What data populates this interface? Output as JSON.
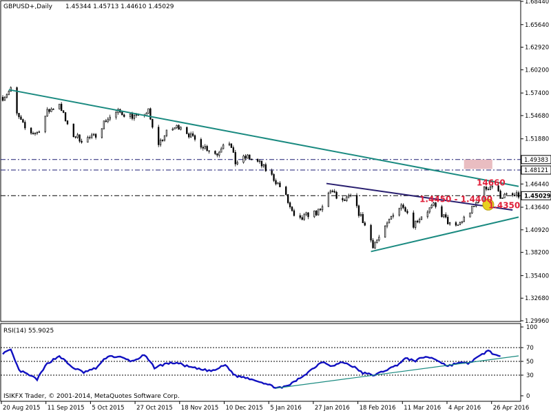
{
  "header": {
    "symbol": "GBPUSD+,Daily",
    "ohlc": "1.45344 1.45713 1.44610 1.45029"
  },
  "footer": {
    "copyright": "ISIKFX Trader, © 2001-2014, MetaQuotes Software Corp."
  },
  "colors": {
    "background": "#ffffff",
    "candle": "#000000",
    "trendline_teal": "#1a8a80",
    "trendline_navy": "#2a2070",
    "rsi_line": "#1010c0",
    "annotation_red": "#e0203a",
    "highlight_box": "#e5b1b6",
    "support_circle": "#e8d020"
  },
  "chart_data": [
    {
      "type": "candlestick",
      "title": "GBPUSD+,Daily",
      "x_ticks": [
        "20 Aug 2015",
        "11 Sep 2015",
        "5 Oct 2015",
        "27 Oct 2015",
        "18 Nov 2015",
        "10 Dec 2015",
        "5 Jan 2016",
        "27 Jan 2016",
        "18 Feb 2016",
        "11 Mar 2016",
        "4 Apr 2016",
        "26 Apr 2016"
      ],
      "y_ticks": [
        "1.68440",
        "1.65640",
        "1.62920",
        "1.60200",
        "1.57400",
        "1.54680",
        "1.51880",
        "1.49160",
        "1.46440",
        "1.43640",
        "1.40920",
        "1.38200",
        "1.35400",
        "1.32680",
        "1.29960"
      ],
      "ylim": [
        1.2996,
        1.6844
      ],
      "price_lines": [
        {
          "label": "1.49383",
          "value": 1.49383,
          "color": "#1a1a70",
          "highlight": false
        },
        {
          "label": "1.48121",
          "value": 1.48121,
          "color": "#1a1a70",
          "highlight": false
        },
        {
          "label": "1.45029",
          "value": 1.45029,
          "color": "#000000",
          "highlight": true
        }
      ],
      "annotations": [
        {
          "text": "14660",
          "price": 1.466,
          "bar": 239
        },
        {
          "text": "1.4450 - 1.4400",
          "price": 1.4425,
          "bar": 206
        },
        {
          "text": "1.4350",
          "price": 1.435,
          "bar": 240
        }
      ],
      "trendlines": [
        {
          "name": "descending resistance",
          "from": [
            3,
            1.578
          ],
          "to": [
            255,
            1.4615
          ],
          "color": "#1a8a80"
        },
        {
          "name": "ascending support",
          "from": [
            182,
            1.383
          ],
          "to": [
            255,
            1.4245
          ],
          "color": "#1a8a80"
        },
        {
          "name": "triangle top",
          "from": [
            160,
            1.465
          ],
          "to": [
            252,
            1.433
          ],
          "color": "#2a2070"
        }
      ],
      "path_points": [
        [
          0,
          1.569
        ],
        [
          4,
          1.578
        ],
        [
          7,
          1.548
        ],
        [
          12,
          1.527
        ],
        [
          17,
          1.526
        ],
        [
          22,
          1.551
        ],
        [
          28,
          1.562
        ],
        [
          33,
          1.526
        ],
        [
          39,
          1.518
        ],
        [
          45,
          1.521
        ],
        [
          51,
          1.542
        ],
        [
          57,
          1.551
        ],
        [
          62,
          1.548
        ],
        [
          67,
          1.544
        ],
        [
          72,
          1.552
        ],
        [
          76,
          1.51
        ],
        [
          82,
          1.529
        ],
        [
          88,
          1.535
        ],
        [
          94,
          1.519
        ],
        [
          100,
          1.509
        ],
        [
          106,
          1.5
        ],
        [
          111,
          1.524
        ],
        [
          115,
          1.49
        ],
        [
          121,
          1.497
        ],
        [
          127,
          1.489
        ],
        [
          133,
          1.474
        ],
        [
          139,
          1.455
        ],
        [
          145,
          1.417
        ],
        [
          151,
          1.428
        ],
        [
          157,
          1.431
        ],
        [
          162,
          1.458
        ],
        [
          167,
          1.441
        ],
        [
          172,
          1.449
        ],
        [
          178,
          1.42
        ],
        [
          183,
          1.391
        ],
        [
          188,
          1.405
        ],
        [
          193,
          1.43
        ],
        [
          198,
          1.44
        ],
        [
          203,
          1.416
        ],
        [
          208,
          1.429
        ],
        [
          213,
          1.438
        ],
        [
          218,
          1.425
        ],
        [
          223,
          1.409
        ],
        [
          228,
          1.423
        ],
        [
          233,
          1.437
        ],
        [
          238,
          1.458
        ],
        [
          242,
          1.463
        ],
        [
          246,
          1.45
        ]
      ]
    },
    {
      "type": "line",
      "title": "RSI(14) 55.9025",
      "ylim": [
        0,
        100
      ],
      "y_ticks": [
        "100",
        "70",
        "50",
        "30",
        "0"
      ],
      "levels": [
        70,
        50,
        30
      ],
      "path_points": [
        [
          0,
          62
        ],
        [
          4,
          66
        ],
        [
          8,
          37
        ],
        [
          13,
          30
        ],
        [
          17,
          24
        ],
        [
          22,
          47
        ],
        [
          28,
          58
        ],
        [
          34,
          42
        ],
        [
          40,
          34
        ],
        [
          46,
          40
        ],
        [
          52,
          58
        ],
        [
          58,
          56
        ],
        [
          64,
          50
        ],
        [
          70,
          59
        ],
        [
          75,
          41
        ],
        [
          81,
          47
        ],
        [
          86,
          48
        ],
        [
          92,
          42
        ],
        [
          98,
          38
        ],
        [
          104,
          36
        ],
        [
          110,
          45
        ],
        [
          115,
          29
        ],
        [
          121,
          26
        ],
        [
          127,
          21
        ],
        [
          133,
          14
        ],
        [
          138,
          11
        ],
        [
          143,
          18
        ],
        [
          148,
          28
        ],
        [
          153,
          39
        ],
        [
          158,
          50
        ],
        [
          163,
          43
        ],
        [
          168,
          49
        ],
        [
          173,
          43
        ],
        [
          178,
          33
        ],
        [
          184,
          30
        ],
        [
          189,
          37
        ],
        [
          194,
          43
        ],
        [
          199,
          54
        ],
        [
          204,
          51
        ],
        [
          209,
          57
        ],
        [
          214,
          53
        ],
        [
          220,
          43
        ],
        [
          225,
          48
        ],
        [
          230,
          47
        ],
        [
          235,
          56
        ],
        [
          240,
          66
        ],
        [
          243,
          60
        ],
        [
          246,
          56
        ]
      ],
      "trendlines": [
        {
          "name": "rsi support",
          "from": [
            135,
            11
          ],
          "to": [
            255,
            58
          ],
          "color": "#1a8a80"
        }
      ]
    }
  ]
}
